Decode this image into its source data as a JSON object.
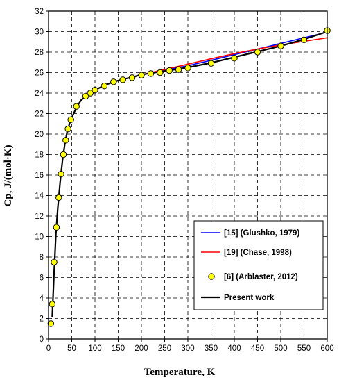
{
  "chart_data": {
    "type": "line",
    "title": "",
    "xlabel": "Temperature, K",
    "ylabel": "Cp, J/(mol·K)",
    "xlim": [
      0,
      600
    ],
    "ylim": [
      0,
      32
    ],
    "xticks": [
      0,
      50,
      100,
      150,
      200,
      250,
      300,
      350,
      400,
      450,
      500,
      550,
      600
    ],
    "yticks": [
      0,
      2,
      4,
      6,
      8,
      10,
      12,
      14,
      16,
      18,
      20,
      22,
      24,
      26,
      28,
      30,
      32
    ],
    "grid": true,
    "legend_position": "bottom-right",
    "series": [
      {
        "name": "[15] (Glushko, 1979)",
        "kind": "line",
        "color": "#0000ff",
        "x": [
          200,
          250,
          298,
          350,
          400,
          450,
          500,
          550,
          600
        ],
        "y": [
          25.8,
          26.25,
          26.65,
          27.2,
          27.75,
          28.3,
          28.85,
          29.4,
          29.95
        ]
      },
      {
        "name": "[19] (Chase, 1998)",
        "kind": "line",
        "color": "#ff0000",
        "x": [
          200,
          250,
          298,
          350,
          400,
          450,
          500,
          550,
          600
        ],
        "y": [
          25.8,
          26.3,
          26.8,
          27.35,
          27.85,
          28.3,
          28.7,
          29.05,
          29.4
        ]
      },
      {
        "name": "[6] (Arblaster, 2012)",
        "kind": "scatter",
        "color": "#ffff00",
        "x": [
          5,
          8,
          12,
          17,
          22,
          27,
          32,
          37,
          42,
          48,
          60,
          80,
          90,
          100,
          120,
          140,
          160,
          180,
          200,
          220,
          240,
          260,
          280,
          300,
          350,
          400,
          450,
          500,
          550,
          600
        ],
        "y": [
          1.5,
          3.4,
          7.5,
          10.9,
          13.8,
          16.1,
          18.0,
          19.4,
          20.5,
          21.4,
          22.7,
          23.7,
          24.0,
          24.3,
          24.7,
          25.1,
          25.3,
          25.5,
          25.75,
          25.9,
          26.0,
          26.2,
          26.3,
          26.45,
          26.9,
          27.4,
          28.0,
          28.6,
          29.2,
          30.1
        ]
      },
      {
        "name": "Present work",
        "kind": "line",
        "color": "#000000",
        "x": [
          8,
          12,
          16,
          20,
          25,
          30,
          35,
          40,
          45,
          50,
          60,
          70,
          80,
          100,
          120,
          140,
          160,
          180,
          200,
          250,
          300,
          350,
          400,
          450,
          500,
          550,
          600
        ],
        "y": [
          2.2,
          6.5,
          10.3,
          12.8,
          15.3,
          17.4,
          19.0,
          20.2,
          21.0,
          21.6,
          22.6,
          23.3,
          23.7,
          24.3,
          24.75,
          25.1,
          25.35,
          25.55,
          25.8,
          26.15,
          26.5,
          26.95,
          27.5,
          28.05,
          28.6,
          29.25,
          30.0
        ]
      }
    ]
  }
}
